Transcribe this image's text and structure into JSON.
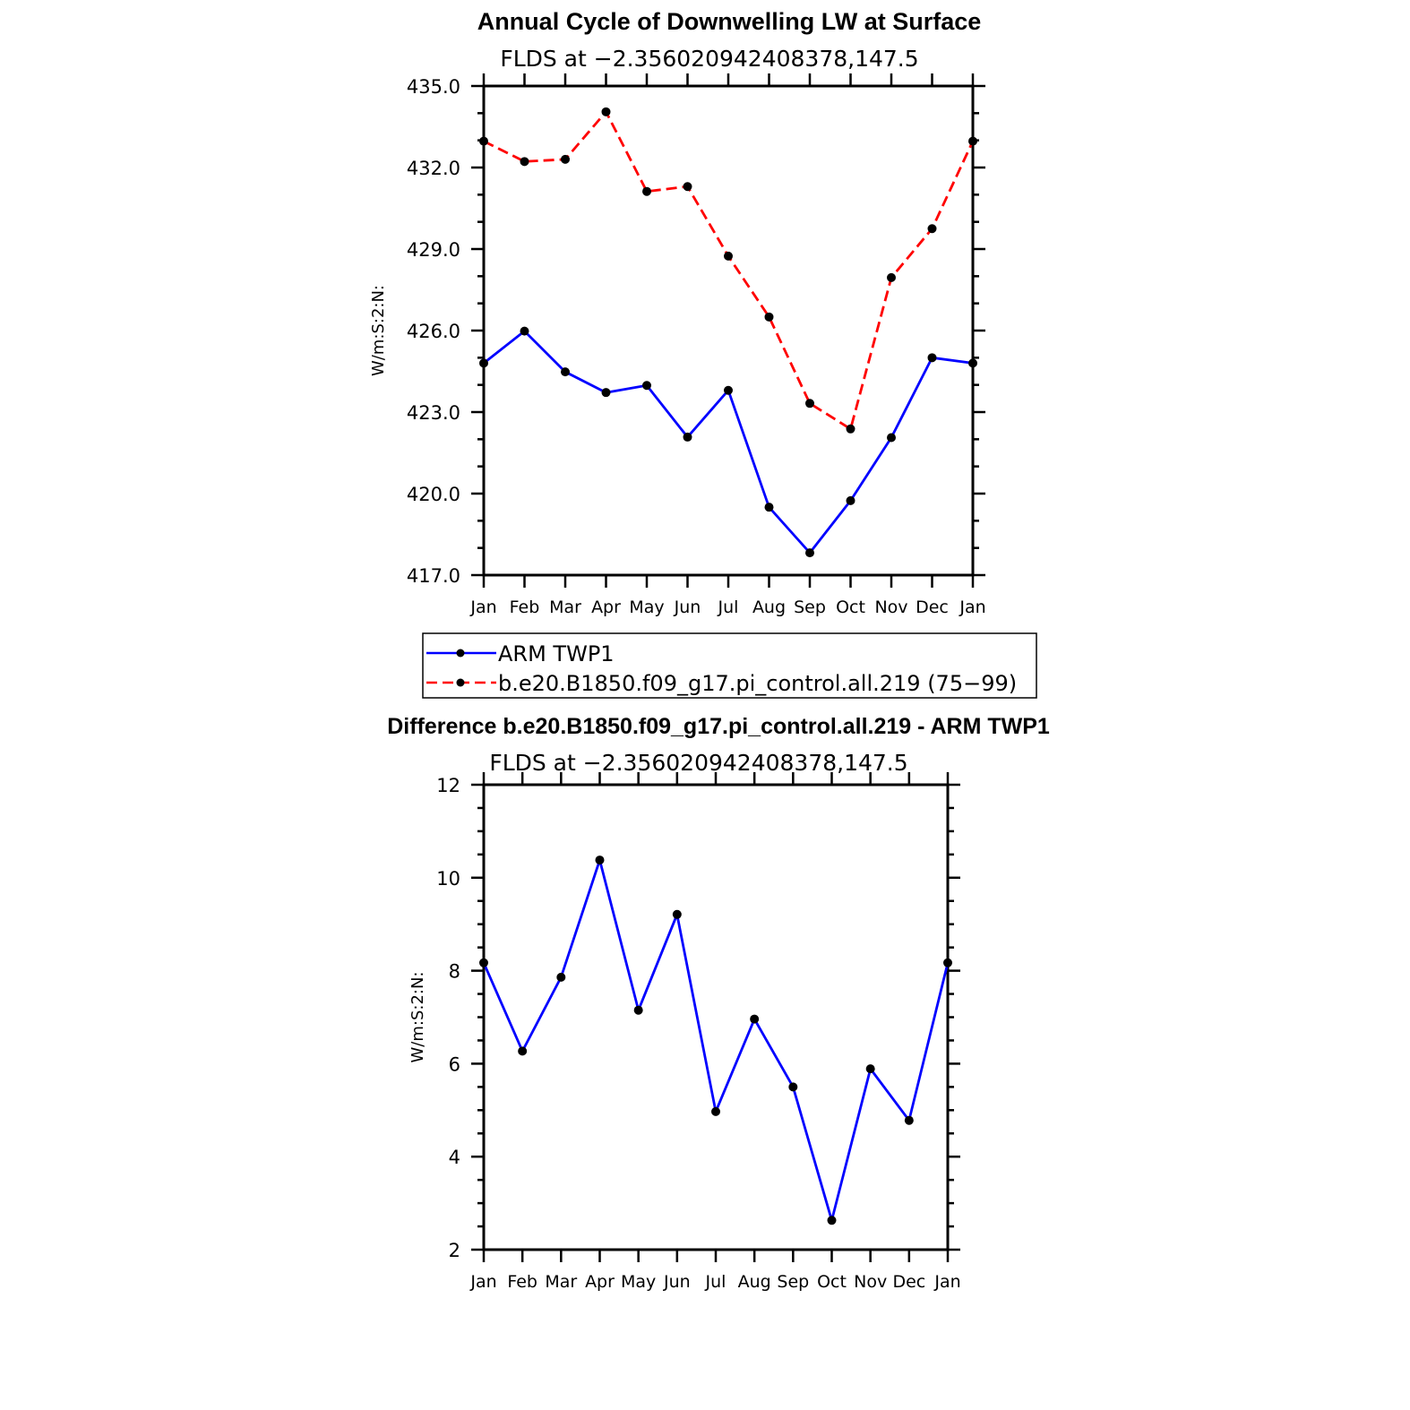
{
  "chart_data": [
    {
      "type": "line",
      "title": "Annual Cycle of Downwelling LW at Surface",
      "subtitle": "FLDS at −2.356020942408378,147.5",
      "ylabel": "W/m:S:2:N:",
      "xlabel": "",
      "ylim": [
        417.0,
        435.0
      ],
      "yticks": [
        "417.0",
        "420.0",
        "423.0",
        "426.0",
        "429.0",
        "432.0",
        "435.0"
      ],
      "categories": [
        "Jan",
        "Feb",
        "Mar",
        "Apr",
        "May",
        "Jun",
        "Jul",
        "Aug",
        "Sep",
        "Oct",
        "Nov",
        "Dec",
        "Jan"
      ],
      "grid": false,
      "legend_position": "bottom",
      "series": [
        {
          "name": "ARM  TWP1",
          "color": "#0000ff",
          "dash": "solid",
          "marker": "filled-circle",
          "values": [
            424.8,
            425.98,
            424.48,
            423.72,
            423.98,
            422.08,
            423.8,
            419.5,
            417.82,
            419.74,
            422.06,
            425.0,
            424.8
          ]
        },
        {
          "name": "b.e20.B1850.f09_g17.pi_control.all.219 (75−99)",
          "color": "#ff0000",
          "dash": "dashed",
          "marker": "filled-circle",
          "values": [
            432.97,
            432.22,
            432.3,
            434.05,
            431.12,
            431.3,
            428.74,
            426.5,
            423.32,
            422.38,
            427.95,
            429.75,
            432.97
          ]
        }
      ]
    },
    {
      "type": "line",
      "title": "Difference b.e20.B1850.f09_g17.pi_control.all.219 - ARM TWP1",
      "subtitle": "FLDS at −2.356020942408378,147.5",
      "ylabel": "W/m:S:2:N:",
      "xlabel": "",
      "ylim": [
        2,
        12
      ],
      "yticks": [
        "2",
        "4",
        "6",
        "8",
        "10",
        "12"
      ],
      "categories": [
        "Jan",
        "Feb",
        "Mar",
        "Apr",
        "May",
        "Jun",
        "Jul",
        "Aug",
        "Sep",
        "Oct",
        "Nov",
        "Dec",
        "Jan"
      ],
      "grid": false,
      "series": [
        {
          "color": "#0000ff",
          "dash": "solid",
          "marker": "filled-circle",
          "values": [
            8.17,
            6.27,
            7.86,
            10.38,
            7.15,
            9.21,
            4.97,
            6.96,
            5.5,
            2.63,
            5.89,
            4.78,
            8.17
          ]
        }
      ]
    }
  ]
}
